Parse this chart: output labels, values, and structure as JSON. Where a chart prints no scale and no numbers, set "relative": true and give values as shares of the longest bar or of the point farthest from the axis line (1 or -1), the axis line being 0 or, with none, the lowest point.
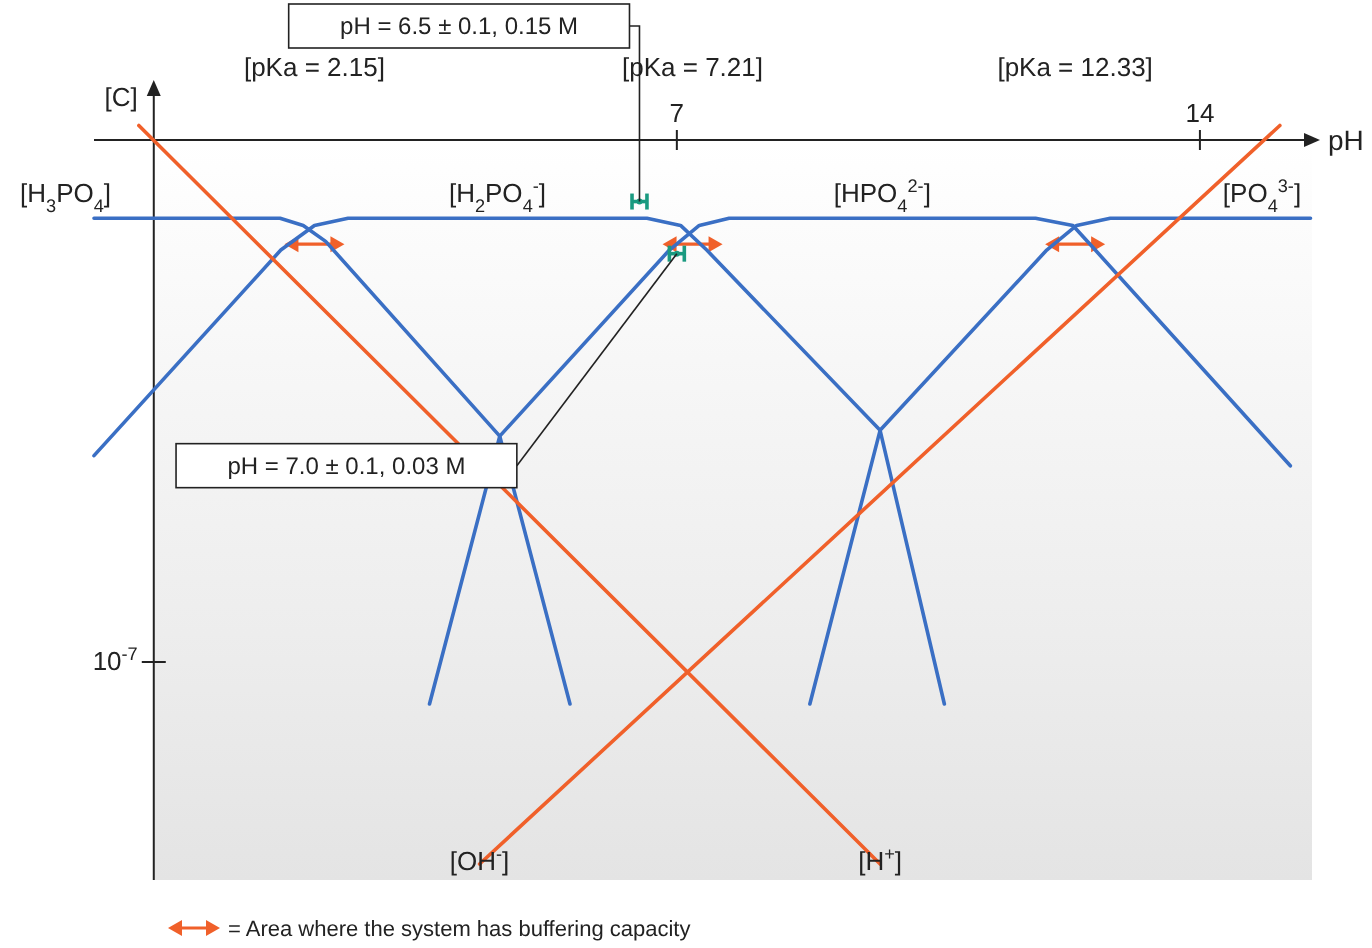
{
  "chart_data": {
    "type": "line",
    "relative": true,
    "ylabel": "[C]",
    "xlabel": "pH",
    "xlim": [
      -0.8,
      15.5
    ],
    "xticks": [
      7,
      14
    ],
    "grid": false,
    "x2lim": [
      -0.8,
      15.5
    ],
    "x2ticks": [
      {
        "value": 2.15,
        "label": "[pKa = 2.15]"
      },
      {
        "value": 7.21,
        "label": "[pKa = 7.21]"
      },
      {
        "value": 12.33,
        "label": "[pKa = 12.33]"
      }
    ],
    "series": [
      {
        "name": "[H$_{3}$PO$_{4}$]",
        "color": "#3a6fc4",
        "x": [
          -0.8,
          1.69,
          2.0,
          2.3,
          4.63,
          5.57
        ],
        "values": [
          -0.108,
          -0.108,
          -0.118,
          -0.14,
          -0.409,
          -0.779
        ]
      },
      {
        "name": "[H$_{2}$PO$_{4}$$^{-}$]",
        "color": "#3a6fc4",
        "x": [
          -0.8,
          1.7,
          2.15,
          2.6,
          6.6,
          7.05,
          7.4,
          9.72,
          10.58
        ],
        "values": [
          -0.436,
          -0.152,
          -0.118,
          -0.108,
          -0.108,
          -0.118,
          -0.152,
          -0.401,
          -0.779
        ]
      },
      {
        "name": "[HPO$_{4}$$^{2-}$]",
        "color": "#3a6fc4",
        "x": [
          3.69,
          4.63,
          6.9,
          7.3,
          7.7,
          11.8,
          12.3,
          12.6,
          15.21
        ],
        "values": [
          -0.779,
          -0.409,
          -0.152,
          -0.118,
          -0.108,
          -0.108,
          -0.118,
          -0.152,
          -0.45
        ]
      },
      {
        "name": "[PO$_{4}$$^{3-}$]",
        "color": "#3a6fc4",
        "x": [
          8.78,
          9.72,
          11.95,
          12.35,
          12.8,
          15.48
        ],
        "values": [
          -0.779,
          -0.401,
          -0.152,
          -0.118,
          -0.108,
          -0.108
        ]
      },
      {
        "name": "[H$^{+}$]",
        "color": "#f0602a",
        "x": [
          -0.2,
          9.72
        ],
        "values": [
          0.02,
          -1
        ]
      },
      {
        "name": "[OH$^{-}$]",
        "color": "#f0602a",
        "x": [
          4.36,
          15.07
        ],
        "values": [
          -1,
          0.02
        ]
      },
      {
        "type": "scatter",
        "color": "#1a9a80",
        "x": [
          6.5,
          7.0
        ],
        "values": [
          -0.085,
          -0.157
        ],
        "xerrors": [
          0.1,
          0.1
        ]
      }
    ],
    "annotations": [
      "pH = 6.5 ± 0.1, 0.15 M",
      "pH = 7.0 ± 0.1, 0.03 M",
      "10$^{-7}$",
      "= Area where the system has buffering capacity"
    ]
  }
}
